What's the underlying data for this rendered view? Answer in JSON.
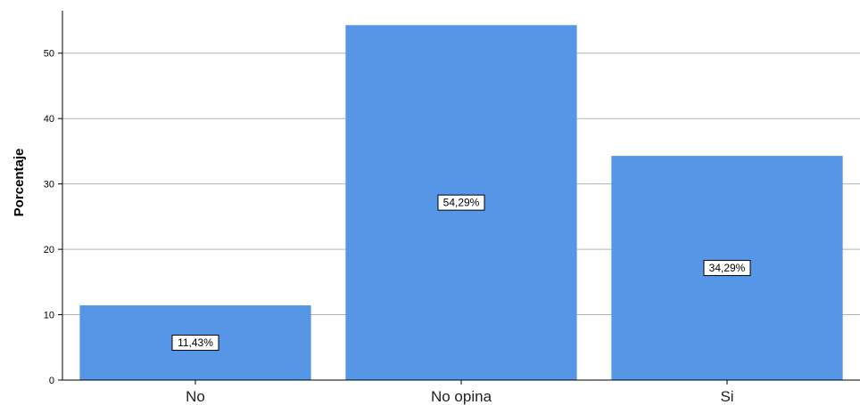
{
  "chart_data": {
    "type": "bar",
    "title": "",
    "xlabel": "",
    "ylabel": "Porcentaje",
    "categories": [
      "No",
      "No opina",
      "Si"
    ],
    "values": [
      11.43,
      54.29,
      34.29
    ],
    "data_labels": [
      "11,43%",
      "54,29%",
      "34,29%"
    ],
    "yticks": [
      0,
      10,
      20,
      30,
      40,
      50
    ],
    "ylim": [
      0,
      56.5
    ],
    "grid": true,
    "legend": "none",
    "bar_color": "#5696e6",
    "grid_color": "#b3b3b3"
  }
}
